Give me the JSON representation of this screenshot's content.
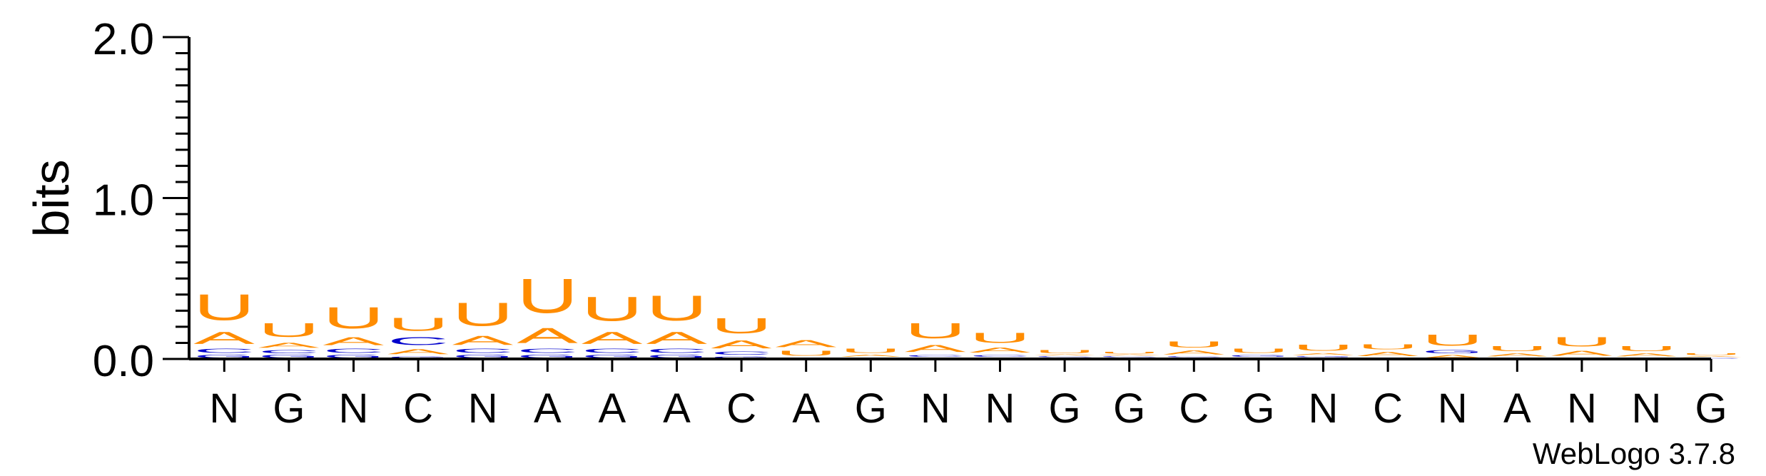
{
  "chart_data": {
    "type": "sequence-logo",
    "ylabel": "bits",
    "ylim": [
      0,
      2
    ],
    "yticks": [
      "0.0",
      "1.0",
      "2.0"
    ],
    "xlabels": [
      "N",
      "G",
      "N",
      "C",
      "N",
      "A",
      "A",
      "A",
      "C",
      "A",
      "G",
      "N",
      "N",
      "G",
      "G",
      "C",
      "G",
      "N",
      "C",
      "N",
      "A",
      "N",
      "N",
      "G"
    ],
    "credit": "WebLogo 3.7.8",
    "colors": {
      "U": "#ff8c00",
      "A": "#ff8c00",
      "C": "#0000cc",
      "G": "#0000cc"
    },
    "stacks": [
      [
        {
          "letter": "G",
          "bits": 0.03
        },
        {
          "letter": "C",
          "bits": 0.04
        },
        {
          "letter": "A",
          "bits": 0.12
        },
        {
          "letter": "U",
          "bits": 0.26
        }
      ],
      [
        {
          "letter": "G",
          "bits": 0.03
        },
        {
          "letter": "C",
          "bits": 0.03
        },
        {
          "letter": "A",
          "bits": 0.05
        },
        {
          "letter": "U",
          "bits": 0.14
        }
      ],
      [
        {
          "letter": "G",
          "bits": 0.03
        },
        {
          "letter": "C",
          "bits": 0.04
        },
        {
          "letter": "A",
          "bits": 0.08
        },
        {
          "letter": "U",
          "bits": 0.21
        }
      ],
      [
        {
          "letter": "G",
          "bits": 0.02
        },
        {
          "letter": "A",
          "bits": 0.05
        },
        {
          "letter": "C",
          "bits": 0.08
        },
        {
          "letter": "U",
          "bits": 0.13
        }
      ],
      [
        {
          "letter": "G",
          "bits": 0.03
        },
        {
          "letter": "C",
          "bits": 0.04
        },
        {
          "letter": "A",
          "bits": 0.09
        },
        {
          "letter": "U",
          "bits": 0.23
        }
      ],
      [
        {
          "letter": "G",
          "bits": 0.03
        },
        {
          "letter": "C",
          "bits": 0.04
        },
        {
          "letter": "A",
          "bits": 0.15
        },
        {
          "letter": "U",
          "bits": 0.34
        }
      ],
      [
        {
          "letter": "G",
          "bits": 0.03
        },
        {
          "letter": "C",
          "bits": 0.04
        },
        {
          "letter": "A",
          "bits": 0.12
        },
        {
          "letter": "U",
          "bits": 0.24
        }
      ],
      [
        {
          "letter": "G",
          "bits": 0.03
        },
        {
          "letter": "C",
          "bits": 0.04
        },
        {
          "letter": "A",
          "bits": 0.12
        },
        {
          "letter": "U",
          "bits": 0.25
        }
      ],
      [
        {
          "letter": "G",
          "bits": 0.02
        },
        {
          "letter": "C",
          "bits": 0.03
        },
        {
          "letter": "A",
          "bits": 0.08
        },
        {
          "letter": "U",
          "bits": 0.15
        }
      ],
      [
        {
          "letter": "C",
          "bits": 0.01
        },
        {
          "letter": "U",
          "bits": 0.05
        },
        {
          "letter": "A",
          "bits": 0.07
        }
      ],
      [
        {
          "letter": "C",
          "bits": 0.01
        },
        {
          "letter": "A",
          "bits": 0.02
        },
        {
          "letter": "U",
          "bits": 0.04
        }
      ],
      [
        {
          "letter": "G",
          "bits": 0.01
        },
        {
          "letter": "C",
          "bits": 0.02
        },
        {
          "letter": "A",
          "bits": 0.07
        },
        {
          "letter": "U",
          "bits": 0.15
        }
      ],
      [
        {
          "letter": "G",
          "bits": 0.01
        },
        {
          "letter": "C",
          "bits": 0.02
        },
        {
          "letter": "A",
          "bits": 0.05
        },
        {
          "letter": "U",
          "bits": 0.1
        }
      ],
      [
        {
          "letter": "G",
          "bits": 0.01
        },
        {
          "letter": "C",
          "bits": 0.01
        },
        {
          "letter": "A",
          "bits": 0.01
        },
        {
          "letter": "U",
          "bits": 0.03
        }
      ],
      [
        {
          "letter": "G",
          "bits": 0.01
        },
        {
          "letter": "C",
          "bits": 0.01
        },
        {
          "letter": "A",
          "bits": 0.01
        },
        {
          "letter": "U",
          "bits": 0.02
        }
      ],
      [
        {
          "letter": "G",
          "bits": 0.01
        },
        {
          "letter": "C",
          "bits": 0.01
        },
        {
          "letter": "A",
          "bits": 0.04
        },
        {
          "letter": "U",
          "bits": 0.06
        }
      ],
      [
        {
          "letter": "C",
          "bits": 0.01
        },
        {
          "letter": "G",
          "bits": 0.02
        },
        {
          "letter": "U",
          "bits": 0.04
        }
      ],
      [
        {
          "letter": "C",
          "bits": 0.01
        },
        {
          "letter": "G",
          "bits": 0.01
        },
        {
          "letter": "A",
          "bits": 0.02
        },
        {
          "letter": "U",
          "bits": 0.06
        }
      ],
      [
        {
          "letter": "C",
          "bits": 0.01
        },
        {
          "letter": "A",
          "bits": 0.04
        },
        {
          "letter": "U",
          "bits": 0.05
        }
      ],
      [
        {
          "letter": "A",
          "bits": 0.03
        },
        {
          "letter": "G",
          "bits": 0.03
        },
        {
          "letter": "U",
          "bits": 0.11
        }
      ],
      [
        {
          "letter": "C",
          "bits": 0.01
        },
        {
          "letter": "A",
          "bits": 0.03
        },
        {
          "letter": "U",
          "bits": 0.05
        }
      ],
      [
        {
          "letter": "C",
          "bits": 0.01
        },
        {
          "letter": "A",
          "bits": 0.05
        },
        {
          "letter": "U",
          "bits": 0.09
        }
      ],
      [
        {
          "letter": "C",
          "bits": 0.01
        },
        {
          "letter": "A",
          "bits": 0.03
        },
        {
          "letter": "U",
          "bits": 0.05
        }
      ],
      [
        {
          "letter": "C",
          "bits": 0.01
        },
        {
          "letter": "A",
          "bits": 0.01
        },
        {
          "letter": "U",
          "bits": 0.02
        }
      ]
    ]
  }
}
